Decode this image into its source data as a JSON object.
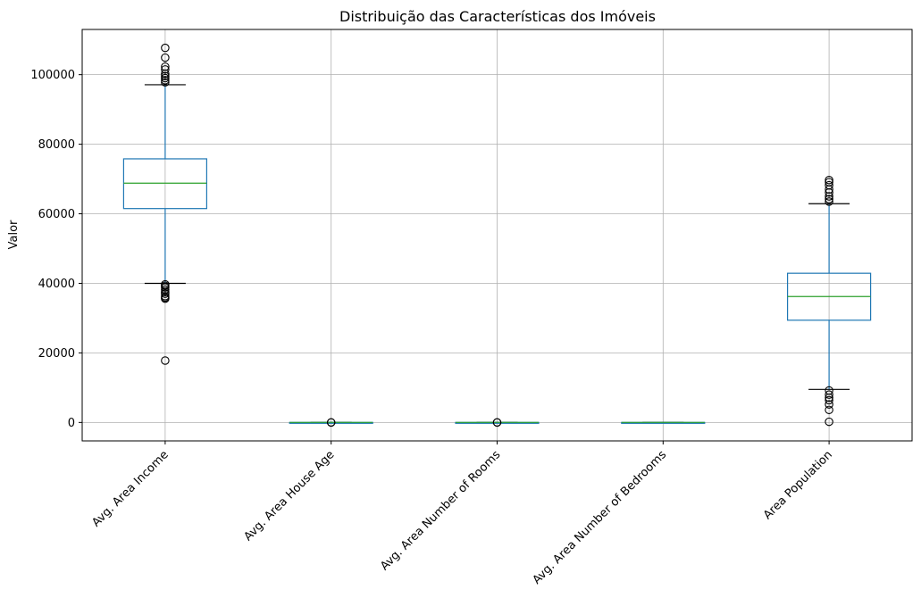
{
  "chart_data": {
    "type": "boxplot",
    "title": "Distribuição das Características dos Imóveis",
    "xlabel": "",
    "ylabel": "Valor",
    "ylim": [
      -5300,
      113000
    ],
    "yticks": [
      0,
      20000,
      40000,
      60000,
      80000,
      100000
    ],
    "ytick_labels": [
      "0",
      "20000",
      "40000",
      "60000",
      "80000",
      "100000"
    ],
    "grid": true,
    "categories": [
      "Avg. Area Income",
      "Avg. Area House Age",
      "Avg. Area Number of Rooms",
      "Avg. Area Number of Bedrooms",
      "Area Population"
    ],
    "boxes": [
      {
        "category": "Avg. Area Income",
        "whisker_low": 40000,
        "q1": 61500,
        "median": 68800,
        "q3": 75800,
        "whisker_high": 97100,
        "outliers": [
          17800,
          35600,
          35900,
          36300,
          37000,
          37500,
          38200,
          38800,
          39300,
          39700,
          97800,
          98400,
          99000,
          99600,
          100300,
          101500,
          102300,
          104900,
          107700
        ]
      },
      {
        "category": "Avg. Area House Age",
        "whisker_low": 3,
        "q1": 5,
        "median": 6,
        "q3": 7,
        "whisker_high": 9,
        "outliers": [
          2.6,
          9.5
        ]
      },
      {
        "category": "Avg. Area Number of Rooms",
        "whisker_low": 4,
        "q1": 6,
        "median": 7,
        "q3": 8,
        "whisker_high": 10,
        "outliers": [
          3.2,
          10.8
        ]
      },
      {
        "category": "Avg. Area Number of Bedrooms",
        "whisker_low": 2,
        "q1": 3,
        "median": 4,
        "q3": 4,
        "whisker_high": 6.5,
        "outliers": []
      },
      {
        "category": "Area Population",
        "whisker_low": 9500,
        "q1": 29400,
        "median": 36200,
        "q3": 42900,
        "whisker_high": 62900,
        "outliers": [
          200,
          3600,
          5200,
          6400,
          7100,
          8000,
          9200,
          63500,
          64200,
          65000,
          66100,
          67000,
          68200,
          69100,
          69700
        ]
      }
    ],
    "colors": {
      "box": "#1f77b4",
      "median": "#2ca02c",
      "whisker_cap": "#000000",
      "outlier": "#000000",
      "grid": "#b0b0b0",
      "axes": "#000000"
    }
  }
}
